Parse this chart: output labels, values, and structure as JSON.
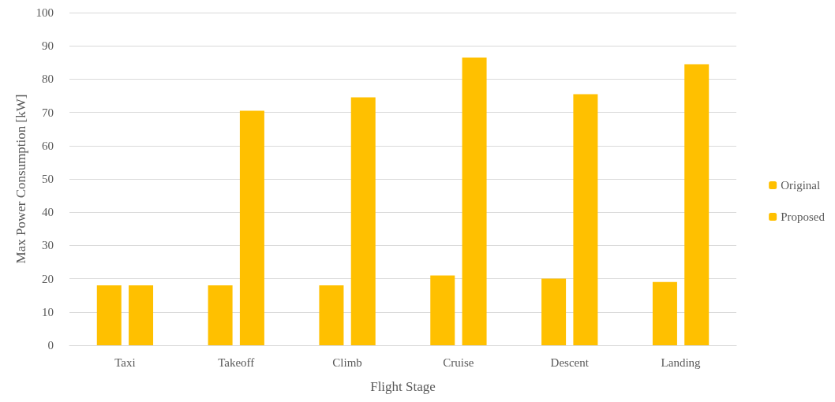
{
  "chart_data": {
    "type": "bar",
    "xlabel": "Flight Stage",
    "ylabel": "Max Power Consumption [kW]",
    "categories": [
      "Taxi",
      "Takeoff",
      "Climb",
      "Cruise",
      "Descent",
      "Landing"
    ],
    "series": [
      {
        "name": "Original",
        "color": "#ffc000",
        "values": [
          18,
          18,
          18,
          21,
          20,
          19
        ]
      },
      {
        "name": "Proposed",
        "color": "#ffc000",
        "values": [
          18,
          70.5,
          74.5,
          86.5,
          75.5,
          84.5
        ]
      }
    ],
    "ylim": [
      0,
      100
    ],
    "yticks": [
      0,
      10,
      20,
      30,
      40,
      50,
      60,
      70,
      80,
      90,
      100
    ],
    "grid": "y",
    "legend": "right"
  }
}
